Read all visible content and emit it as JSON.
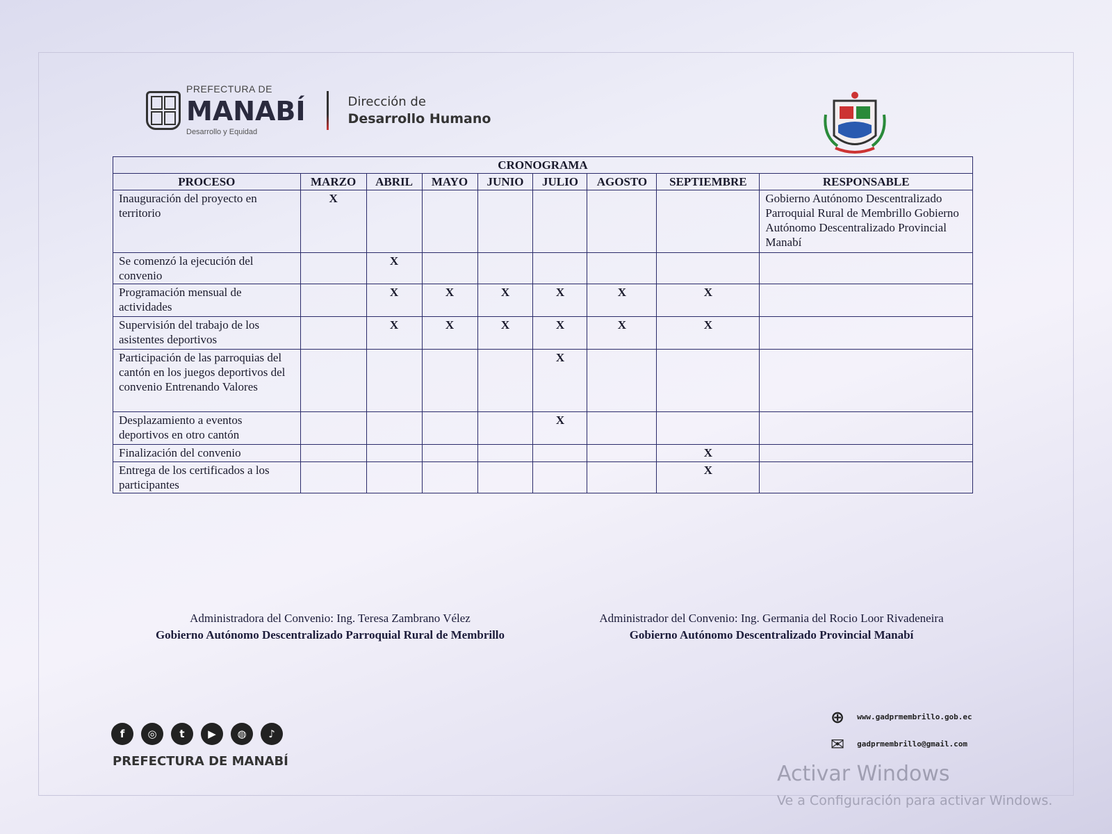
{
  "header": {
    "brand_top": "PREFECTURA DE",
    "brand_main": "MANABÍ",
    "brand_sub": "Desarrollo y Equidad",
    "direction_line1": "Dirección de",
    "direction_line2": "Desarrollo Humano"
  },
  "table": {
    "title": "CRONOGRAMA",
    "columns": [
      "PROCESO",
      "MARZO",
      "ABRIL",
      "MAYO",
      "JUNIO",
      "JULIO",
      "AGOSTO",
      "SEPTIEMBRE",
      "RESPONSABLE"
    ],
    "mark": "X",
    "rows": [
      {
        "process": "Inauguración del proyecto en territorio",
        "months": [
          true,
          false,
          false,
          false,
          false,
          false,
          false
        ],
        "responsable": "Gobierno Autónomo Descentralizado Parroquial Rural de Membrillo Gobierno Autónomo Descentralizado Provincial Manabí"
      },
      {
        "process": "Se comenzó la ejecución del convenio",
        "months": [
          false,
          true,
          false,
          false,
          false,
          false,
          false
        ],
        "responsable": ""
      },
      {
        "process": "Programación mensual de actividades",
        "months": [
          false,
          true,
          true,
          true,
          true,
          true,
          true
        ],
        "responsable": ""
      },
      {
        "process": "Supervisión del trabajo de los asistentes deportivos",
        "months": [
          false,
          true,
          true,
          true,
          true,
          true,
          true
        ],
        "responsable": ""
      },
      {
        "process": "Participación de las parroquias del cantón en los juegos deportivos del convenio Entrenando Valores",
        "months": [
          false,
          false,
          false,
          false,
          true,
          false,
          false
        ],
        "responsable": ""
      },
      {
        "process": "Desplazamiento a eventos deportivos en otro cantón",
        "months": [
          false,
          false,
          false,
          false,
          true,
          false,
          false
        ],
        "responsable": ""
      },
      {
        "process": "Finalización del convenio",
        "months": [
          false,
          false,
          false,
          false,
          false,
          false,
          true
        ],
        "responsable": ""
      },
      {
        "process": "Entrega de los certificados a los participantes",
        "months": [
          false,
          false,
          false,
          false,
          false,
          false,
          true
        ],
        "responsable": ""
      }
    ]
  },
  "signatures": [
    {
      "line1": "Administradora del Convenio: Ing. Teresa Zambrano Vélez",
      "line2": "Gobierno Autónomo Descentralizado Parroquial Rural de Membrillo"
    },
    {
      "line1": "Administrador del Convenio: Ing. Germania del Rocio Loor Rivadeneira",
      "line2": "Gobierno Autónomo Descentralizado Provincial Manabí"
    }
  ],
  "footer": {
    "social_icons": [
      "facebook-icon",
      "instagram-icon",
      "twitter-icon",
      "youtube-icon",
      "web-icon",
      "tiktok-icon"
    ],
    "brand": "PREFECTURA DE MANABÍ",
    "website": "www.gadprmembrillo.gob.ec",
    "email": "gadprmembrillo@gmail.com"
  },
  "watermark": {
    "line1": "Activar Windows",
    "line2": "Ve a Configuración para activar Windows."
  }
}
